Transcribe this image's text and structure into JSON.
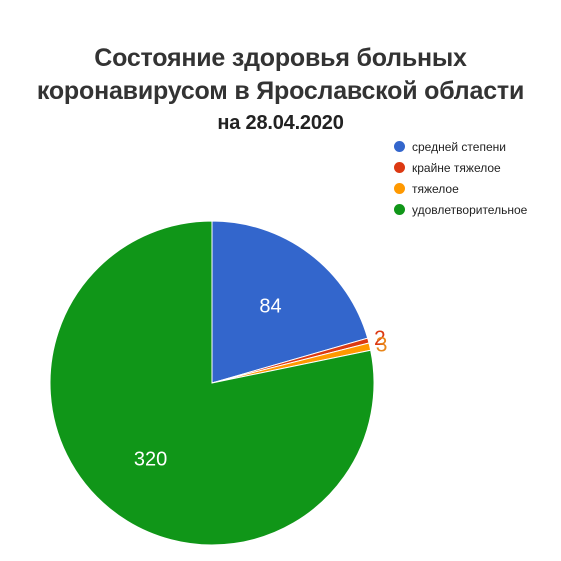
{
  "chart_data": {
    "type": "pie",
    "title_lines": [
      "Состояние здоровья больных",
      "коронавирусом в Ярославской области"
    ],
    "subtitle": "на 28.04.2020",
    "slices": [
      {
        "label": "средней степени",
        "value": 84,
        "color": "#3366cc"
      },
      {
        "label": "крайне тяжелое",
        "value": 2,
        "color": "#dc3912"
      },
      {
        "label": "тяжелое",
        "value": 3,
        "color": "#ff9900"
      },
      {
        "label": "удовлетворительное",
        "value": 320,
        "color": "#109618"
      }
    ],
    "legend_position": "top-right",
    "data_labels": [
      "84",
      "2",
      "3",
      "320"
    ]
  }
}
